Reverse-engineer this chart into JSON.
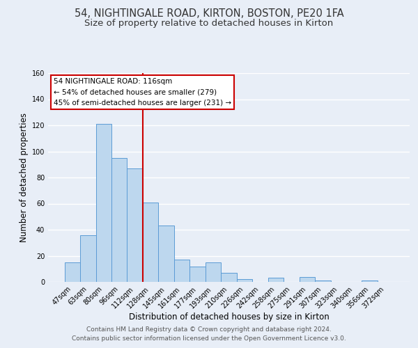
{
  "title": "54, NIGHTINGALE ROAD, KIRTON, BOSTON, PE20 1FA",
  "subtitle": "Size of property relative to detached houses in Kirton",
  "xlabel": "Distribution of detached houses by size in Kirton",
  "ylabel": "Number of detached properties",
  "bar_labels": [
    "47sqm",
    "63sqm",
    "80sqm",
    "96sqm",
    "112sqm",
    "128sqm",
    "145sqm",
    "161sqm",
    "177sqm",
    "193sqm",
    "210sqm",
    "226sqm",
    "242sqm",
    "258sqm",
    "275sqm",
    "291sqm",
    "307sqm",
    "323sqm",
    "340sqm",
    "356sqm",
    "372sqm"
  ],
  "bar_values": [
    15,
    36,
    121,
    95,
    87,
    61,
    43,
    17,
    12,
    15,
    7,
    2,
    0,
    3,
    0,
    4,
    1,
    0,
    0,
    1,
    0
  ],
  "bar_color": "#bdd7ee",
  "bar_edge_color": "#5b9bd5",
  "vline_x": 4.5,
  "vline_color": "#cc0000",
  "ylim": [
    0,
    160
  ],
  "yticks": [
    0,
    20,
    40,
    60,
    80,
    100,
    120,
    140,
    160
  ],
  "annotation_title": "54 NIGHTINGALE ROAD: 116sqm",
  "annotation_line1": "← 54% of detached houses are smaller (279)",
  "annotation_line2": "45% of semi-detached houses are larger (231) →",
  "annotation_box_color": "#ffffff",
  "annotation_box_edge": "#cc0000",
  "footer_line1": "Contains HM Land Registry data © Crown copyright and database right 2024.",
  "footer_line2": "Contains public sector information licensed under the Open Government Licence v3.0.",
  "background_color": "#e8eef7",
  "plot_background": "#e8eef7",
  "grid_color": "#ffffff",
  "title_fontsize": 10.5,
  "subtitle_fontsize": 9.5,
  "axis_label_fontsize": 8.5,
  "tick_fontsize": 7,
  "annotation_fontsize": 7.5,
  "footer_fontsize": 6.5
}
